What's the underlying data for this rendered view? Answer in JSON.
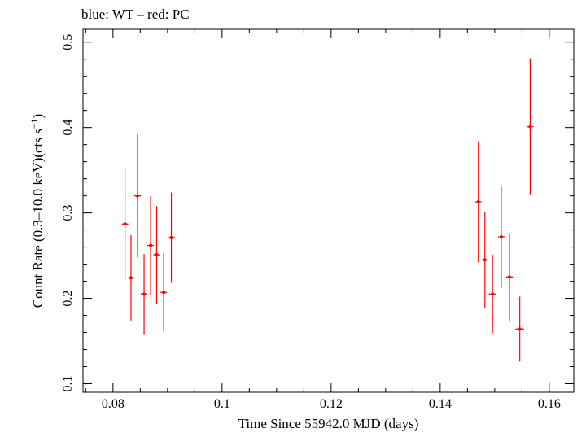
{
  "chart_data": {
    "type": "scatter",
    "title": "blue: WT – red: PC",
    "xlabel": "Time Since 55942.0 MJD (days)",
    "ylabel_main": "Count Rate (0.3–10.0 keV)(cts s",
    "ylabel_sup": "−1",
    "ylabel_end": ")",
    "xlim": [
      0.0745,
      0.1645
    ],
    "ylim": [
      0.09,
      0.515
    ],
    "x_ticks": [
      0.08,
      0.1,
      0.12,
      0.14,
      0.16
    ],
    "x_tick_labels": [
      "0.08",
      "0.1",
      "0.12",
      "0.14",
      "0.16"
    ],
    "y_ticks": [
      0.1,
      0.2,
      0.3,
      0.4,
      0.5
    ],
    "y_tick_labels": [
      "0.1",
      "0.2",
      "0.3",
      "0.4",
      "0.5"
    ],
    "grid": false,
    "series": [
      {
        "color": "#ff0000",
        "points": [
          {
            "x": 0.0822,
            "y": 0.287,
            "ylo": 0.222,
            "yhi": 0.352,
            "xerr": 0.0006
          },
          {
            "x": 0.0833,
            "y": 0.224,
            "ylo": 0.174,
            "yhi": 0.274,
            "xerr": 0.0006
          },
          {
            "x": 0.0845,
            "y": 0.32,
            "ylo": 0.248,
            "yhi": 0.392,
            "xerr": 0.0006
          },
          {
            "x": 0.0857,
            "y": 0.205,
            "ylo": 0.158,
            "yhi": 0.252,
            "xerr": 0.0006
          },
          {
            "x": 0.0869,
            "y": 0.262,
            "ylo": 0.204,
            "yhi": 0.32,
            "xerr": 0.0006
          },
          {
            "x": 0.088,
            "y": 0.251,
            "ylo": 0.194,
            "yhi": 0.308,
            "xerr": 0.0006
          },
          {
            "x": 0.0893,
            "y": 0.207,
            "ylo": 0.161,
            "yhi": 0.253,
            "xerr": 0.0006
          },
          {
            "x": 0.0907,
            "y": 0.271,
            "ylo": 0.218,
            "yhi": 0.324,
            "xerr": 0.0007
          },
          {
            "x": 0.147,
            "y": 0.313,
            "ylo": 0.242,
            "yhi": 0.384,
            "xerr": 0.0006
          },
          {
            "x": 0.1482,
            "y": 0.245,
            "ylo": 0.189,
            "yhi": 0.301,
            "xerr": 0.0006
          },
          {
            "x": 0.1496,
            "y": 0.205,
            "ylo": 0.159,
            "yhi": 0.251,
            "xerr": 0.0007
          },
          {
            "x": 0.1512,
            "y": 0.272,
            "ylo": 0.212,
            "yhi": 0.332,
            "xerr": 0.0006
          },
          {
            "x": 0.1527,
            "y": 0.225,
            "ylo": 0.174,
            "yhi": 0.276,
            "xerr": 0.0006
          },
          {
            "x": 0.1546,
            "y": 0.164,
            "ylo": 0.126,
            "yhi": 0.202,
            "xerr": 0.0008
          },
          {
            "x": 0.1565,
            "y": 0.401,
            "ylo": 0.321,
            "yhi": 0.481,
            "xerr": 0.0006
          }
        ]
      }
    ]
  }
}
